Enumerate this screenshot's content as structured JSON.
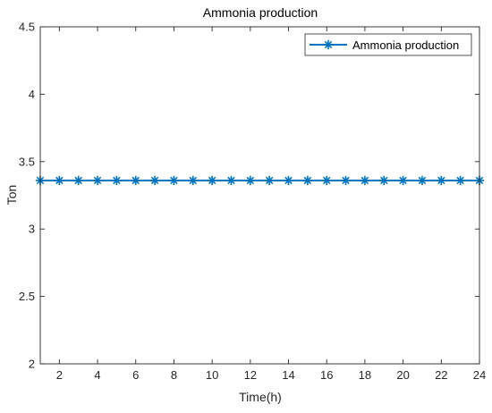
{
  "chart_data": {
    "type": "line",
    "title": "Ammonia production",
    "xlabel": "Time(h)",
    "ylabel": "Ton",
    "xlim": [
      1,
      24
    ],
    "ylim": [
      2,
      4.5
    ],
    "xticks": [
      2,
      4,
      6,
      8,
      10,
      12,
      14,
      16,
      18,
      20,
      22,
      24
    ],
    "yticks": [
      2,
      2.5,
      3,
      3.5,
      4,
      4.5
    ],
    "ytick_labels": [
      "2",
      "2.5",
      "3",
      "3.5",
      "4",
      "4.5"
    ],
    "grid": false,
    "legend_position": "top-right",
    "series": [
      {
        "name": "Ammonia production",
        "color": "#0072BD",
        "marker": "asterisk",
        "x": [
          1,
          2,
          3,
          4,
          5,
          6,
          7,
          8,
          9,
          10,
          11,
          12,
          13,
          14,
          15,
          16,
          17,
          18,
          19,
          20,
          21,
          22,
          23,
          24
        ],
        "y": [
          3.36,
          3.36,
          3.36,
          3.36,
          3.36,
          3.36,
          3.36,
          3.36,
          3.36,
          3.36,
          3.36,
          3.36,
          3.36,
          3.36,
          3.36,
          3.36,
          3.36,
          3.36,
          3.36,
          3.36,
          3.36,
          3.36,
          3.36,
          3.36
        ]
      }
    ]
  }
}
